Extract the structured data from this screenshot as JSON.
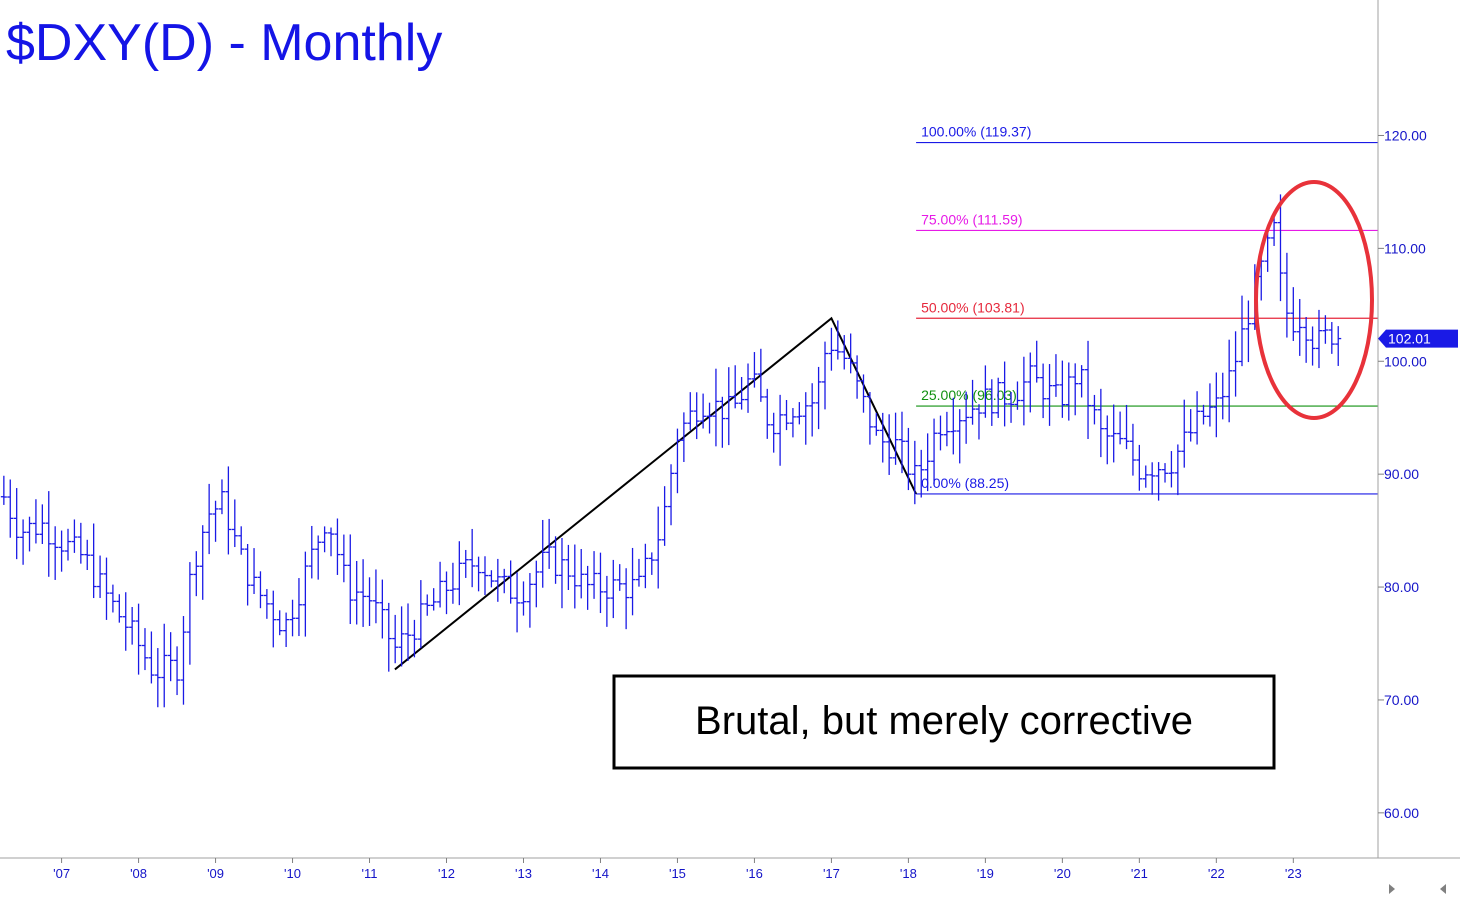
{
  "chart_data": {
    "type": "ohlc-bar",
    "title": "$DXY(D) - Monthly",
    "y_ticks": [
      "60.00",
      "70.00",
      "80.00",
      "90.00",
      "100.00",
      "110.00",
      "120.00"
    ],
    "y_tick_values": [
      60,
      70,
      80,
      90,
      100,
      110,
      120
    ],
    "x_ticks": [
      "'07",
      "'08",
      "'09",
      "'10",
      "'11",
      "'12",
      "'13",
      "'14",
      "'15",
      "'16",
      "'17",
      "'18",
      "'19",
      "'20",
      "'21",
      "'22",
      "'23"
    ],
    "x_tick_values": [
      2007,
      2008,
      2009,
      2010,
      2011,
      2012,
      2013,
      2014,
      2015,
      2016,
      2017,
      2018,
      2019,
      2020,
      2021,
      2022,
      2023
    ],
    "ylim": [
      56,
      132
    ],
    "xlim": [
      2006.2,
      2024.1
    ],
    "last_value": 102.01,
    "last_value_label": "102.01",
    "fib_levels": [
      {
        "label": "100.00% (119.37)",
        "value": 119.37,
        "color": "#1a1ae6"
      },
      {
        "label": "75.00% (111.59)",
        "value": 111.59,
        "color": "#e61ae6"
      },
      {
        "label": "50.00% (103.81)",
        "value": 103.81,
        "color": "#e6283c"
      },
      {
        "label": "25.00% (96.03)",
        "value": 96.03,
        "color": "#109010"
      },
      {
        "label": "0.00% (88.25)",
        "value": 88.25,
        "color": "#1a1ae6"
      }
    ],
    "fib_start_x": 2018.1,
    "swing_line": [
      {
        "x": 2011.33,
        "y": 72.7
      },
      {
        "x": 2017.0,
        "y": 103.8
      },
      {
        "x": 2018.1,
        "y": 88.25
      }
    ],
    "monthly_close_anchors": [
      [
        2006.25,
        88.0
      ],
      [
        2006.45,
        85.0
      ],
      [
        2006.75,
        85.5
      ],
      [
        2007.0,
        84.0
      ],
      [
        2007.3,
        82.5
      ],
      [
        2007.6,
        79.0
      ],
      [
        2007.9,
        76.0
      ],
      [
        2008.2,
        72.5
      ],
      [
        2008.5,
        73.0
      ],
      [
        2008.7,
        82.0
      ],
      [
        2008.9,
        86.5
      ],
      [
        2009.1,
        87.5
      ],
      [
        2009.3,
        83.0
      ],
      [
        2009.5,
        80.0
      ],
      [
        2009.9,
        76.5
      ],
      [
        2010.1,
        80.0
      ],
      [
        2010.45,
        86.5
      ],
      [
        2010.7,
        80.0
      ],
      [
        2011.0,
        79.0
      ],
      [
        2011.33,
        74.5
      ],
      [
        2011.7,
        77.5
      ],
      [
        2012.0,
        80.0
      ],
      [
        2012.4,
        82.5
      ],
      [
        2012.7,
        80.0
      ],
      [
        2012.95,
        79.5
      ],
      [
        2013.3,
        82.5
      ],
      [
        2013.6,
        81.5
      ],
      [
        2013.8,
        80.0
      ],
      [
        2014.2,
        80.0
      ],
      [
        2014.5,
        80.0
      ],
      [
        2014.8,
        85.5
      ],
      [
        2015.0,
        93.5
      ],
      [
        2015.3,
        96.5
      ],
      [
        2015.7,
        95.5
      ],
      [
        2015.95,
        98.5
      ],
      [
        2016.2,
        94.5
      ],
      [
        2016.5,
        96.0
      ],
      [
        2016.8,
        96.5
      ],
      [
        2016.95,
        102.0
      ],
      [
        2017.2,
        100.0
      ],
      [
        2017.4,
        96.5
      ],
      [
        2017.6,
        93.0
      ],
      [
        2017.85,
        92.5
      ],
      [
        2018.1,
        89.5
      ],
      [
        2018.4,
        94.5
      ],
      [
        2018.7,
        95.5
      ],
      [
        2018.95,
        96.5
      ],
      [
        2019.3,
        97.0
      ],
      [
        2019.6,
        98.5
      ],
      [
        2019.95,
        96.5
      ],
      [
        2020.2,
        99.0
      ],
      [
        2020.5,
        93.5
      ],
      [
        2020.8,
        92.5
      ],
      [
        2021.0,
        90.5
      ],
      [
        2021.4,
        91.0
      ],
      [
        2021.8,
        95.0
      ],
      [
        2022.0,
        96.0
      ],
      [
        2022.2,
        99.0
      ],
      [
        2022.4,
        104.0
      ],
      [
        2022.6,
        108.5
      ],
      [
        2022.75,
        111.5
      ],
      [
        2022.85,
        106.0
      ],
      [
        2022.95,
        103.5
      ],
      [
        2023.1,
        104.0
      ],
      [
        2023.3,
        101.5
      ],
      [
        2023.5,
        102.5
      ],
      [
        2023.65,
        102.01
      ]
    ],
    "annotation": "Brutal, but merely corrective",
    "highlight": "red-ellipse-2022-2023-top"
  }
}
